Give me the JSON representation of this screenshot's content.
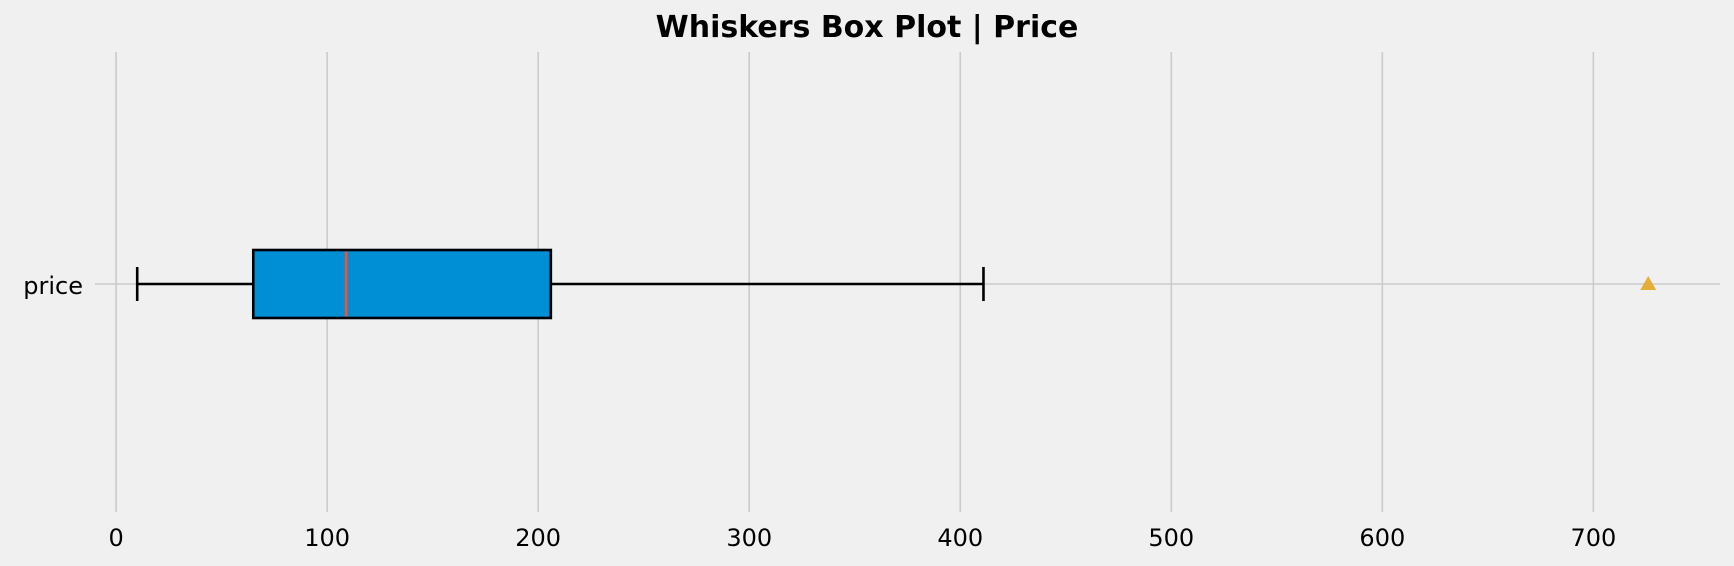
{
  "chart_data": {
    "type": "box",
    "title": "Whiskers Box Plot | Price",
    "orientation": "horizontal",
    "category": "price",
    "stats": {
      "whisker_low": 10,
      "q1": 65,
      "median": 109,
      "q3": 206,
      "whisker_high": 411,
      "mean": 726
    },
    "xlim": [
      -10,
      760
    ],
    "xticks": [
      0,
      100,
      200,
      300,
      400,
      500,
      600,
      700
    ],
    "grid": true,
    "colors": {
      "box_fill": "#008fd5",
      "box_edge": "#000000",
      "median": "#fc4f30",
      "mean_marker": "#e5ae38",
      "grid": "#cbcbcb",
      "background": "#f0f0f0"
    }
  }
}
